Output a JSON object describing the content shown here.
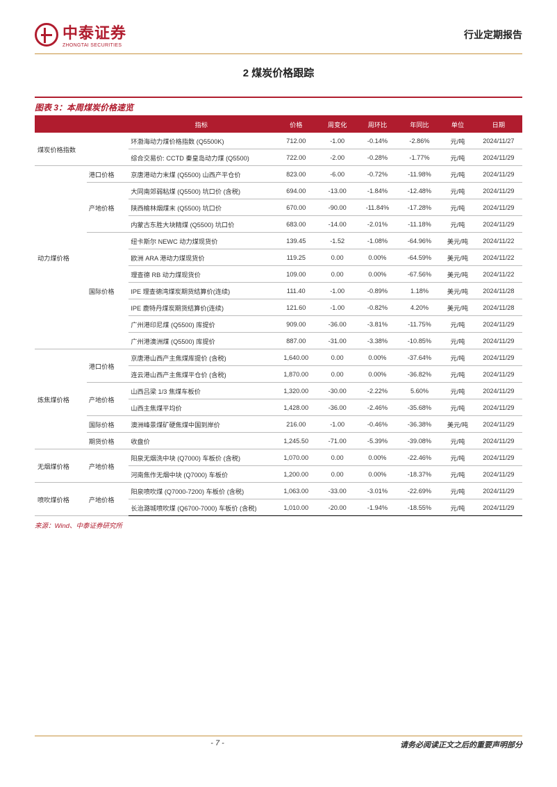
{
  "header": {
    "logo_cn": "中泰证券",
    "logo_en": "ZHONGTAI SECURITIES",
    "report_type": "行业定期报告"
  },
  "section_title": "2 煤炭价格跟踪",
  "figure_title": "图表 3：本周煤炭价格速览",
  "table": {
    "columns": [
      "",
      "",
      "指标",
      "价格",
      "周变化",
      "周环比",
      "年同比",
      "单位",
      "日期"
    ],
    "col_widths": [
      "68px",
      "55px",
      "190px",
      "58px",
      "50px",
      "55px",
      "55px",
      "45px",
      "62px"
    ],
    "header_bg": "#b01c2e",
    "header_color": "#ffffff",
    "border_color": "#bbbbbb",
    "accent_color": "#b01c2e",
    "rows": [
      {
        "cat": "煤炭价格指数",
        "cat_rs": 2,
        "sub": "",
        "sub_rs": 2,
        "ind": "环渤海动力煤价格指数 (Q5500K)",
        "price": "712.00",
        "wchg": "-1.00",
        "wpct": "-0.14%",
        "ypct": "-2.86%",
        "unit": "元/吨",
        "date": "2024/11/27",
        "cat_sep": false
      },
      {
        "ind": "综合交易价: CCTD 秦皇岛动力煤 (Q5500)",
        "price": "722.00",
        "wchg": "-2.00",
        "wpct": "-0.28%",
        "ypct": "-1.77%",
        "unit": "元/吨",
        "date": "2024/11/29"
      },
      {
        "cat": "动力煤价格",
        "cat_rs": 11,
        "sub": "港口价格",
        "sub_rs": 1,
        "ind": "京唐港动力末煤 (Q5500) 山西产平仓价",
        "price": "823.00",
        "wchg": "-6.00",
        "wpct": "-0.72%",
        "ypct": "-11.98%",
        "unit": "元/吨",
        "date": "2024/11/29",
        "cat_sep": true
      },
      {
        "sub": "产地价格",
        "sub_rs": 3,
        "ind": "大同南郊弱粘煤 (Q5500) 坑口价 (含税)",
        "price": "694.00",
        "wchg": "-13.00",
        "wpct": "-1.84%",
        "ypct": "-12.48%",
        "unit": "元/吨",
        "date": "2024/11/29",
        "sub_sep": true
      },
      {
        "ind": "陕西榆林烟煤末 (Q5500) 坑口价",
        "price": "670.00",
        "wchg": "-90.00",
        "wpct": "-11.84%",
        "ypct": "-17.28%",
        "unit": "元/吨",
        "date": "2024/11/29"
      },
      {
        "ind": "内蒙古东胜大块精煤 (Q5500) 坑口价",
        "price": "683.00",
        "wchg": "-14.00",
        "wpct": "-2.01%",
        "ypct": "-11.18%",
        "unit": "元/吨",
        "date": "2024/11/29"
      },
      {
        "sub": "国际价格",
        "sub_rs": 7,
        "ind": "纽卡斯尔 NEWC 动力煤现货价",
        "price": "139.45",
        "wchg": "-1.52",
        "wpct": "-1.08%",
        "ypct": "-64.96%",
        "unit": "美元/吨",
        "date": "2024/11/22",
        "sub_sep": true
      },
      {
        "ind": "欧洲 ARA 港动力煤现货价",
        "price": "119.25",
        "wchg": "0.00",
        "wpct": "0.00%",
        "ypct": "-64.59%",
        "unit": "美元/吨",
        "date": "2024/11/22"
      },
      {
        "ind": "理查德 RB 动力煤现货价",
        "price": "109.00",
        "wchg": "0.00",
        "wpct": "0.00%",
        "ypct": "-67.56%",
        "unit": "美元/吨",
        "date": "2024/11/22"
      },
      {
        "ind": "IPE 理查德湾煤炭期货结算价(连续)",
        "price": "111.40",
        "wchg": "-1.00",
        "wpct": "-0.89%",
        "ypct": "1.18%",
        "unit": "美元/吨",
        "date": "2024/11/28"
      },
      {
        "ind": "IPE 鹿特丹煤炭期货结算价(连续)",
        "price": "121.60",
        "wchg": "-1.00",
        "wpct": "-0.82%",
        "ypct": "4.20%",
        "unit": "美元/吨",
        "date": "2024/11/28"
      },
      {
        "ind": "广州港印尼煤 (Q5500) 库提价",
        "price": "909.00",
        "wchg": "-36.00",
        "wpct": "-3.81%",
        "ypct": "-11.75%",
        "unit": "元/吨",
        "date": "2024/11/29"
      },
      {
        "ind": "广州港澳洲煤 (Q5500) 库提价",
        "price": "887.00",
        "wchg": "-31.00",
        "wpct": "-3.38%",
        "ypct": "-10.85%",
        "unit": "元/吨",
        "date": "2024/11/29"
      },
      {
        "cat": "炼焦煤价格",
        "cat_rs": 6,
        "sub": "港口价格",
        "sub_rs": 2,
        "ind": "京唐港山西产主焦煤库提价 (含税)",
        "price": "1,640.00",
        "wchg": "0.00",
        "wpct": "0.00%",
        "ypct": "-37.64%",
        "unit": "元/吨",
        "date": "2024/11/29",
        "cat_sep": true
      },
      {
        "ind": "连云港山西产主焦煤平仓价 (含税)",
        "price": "1,870.00",
        "wchg": "0.00",
        "wpct": "0.00%",
        "ypct": "-36.82%",
        "unit": "元/吨",
        "date": "2024/11/29"
      },
      {
        "sub": "产地价格",
        "sub_rs": 2,
        "ind": "山西吕梁 1/3 焦煤车板价",
        "price": "1,320.00",
        "wchg": "-30.00",
        "wpct": "-2.22%",
        "ypct": "5.60%",
        "unit": "元/吨",
        "date": "2024/11/29",
        "sub_sep": true
      },
      {
        "ind": "山西主焦煤平均价",
        "price": "1,428.00",
        "wchg": "-36.00",
        "wpct": "-2.46%",
        "ypct": "-35.68%",
        "unit": "元/吨",
        "date": "2024/11/29"
      },
      {
        "sub": "国际价格",
        "sub_rs": 1,
        "ind": "澳洲峰景煤矿硬焦煤中国到岸价",
        "price": "216.00",
        "wchg": "-1.00",
        "wpct": "-0.46%",
        "ypct": "-36.38%",
        "unit": "美元/吨",
        "date": "2024/11/29",
        "sub_sep": true
      },
      {
        "sub": "期货价格",
        "sub_rs": 1,
        "ind": "收盘价",
        "price": "1,245.50",
        "wchg": "-71.00",
        "wpct": "-5.39%",
        "ypct": "-39.08%",
        "unit": "元/吨",
        "date": "2024/11/29",
        "sub_sep": true
      },
      {
        "cat": "无烟煤价格",
        "cat_rs": 2,
        "sub": "产地价格",
        "sub_rs": 2,
        "ind": "阳泉无烟洗中块 (Q7000) 车板价 (含税)",
        "price": "1,070.00",
        "wchg": "0.00",
        "wpct": "0.00%",
        "ypct": "-22.46%",
        "unit": "元/吨",
        "date": "2024/11/29",
        "cat_sep": true
      },
      {
        "ind": "河南焦作无烟中块 (Q7000) 车板价",
        "price": "1,200.00",
        "wchg": "0.00",
        "wpct": "0.00%",
        "ypct": "-18.37%",
        "unit": "元/吨",
        "date": "2024/11/29"
      },
      {
        "cat": "喷吹煤价格",
        "cat_rs": 2,
        "sub": "产地价格",
        "sub_rs": 2,
        "ind": "阳泉喷吹煤 (Q7000-7200) 车板价 (含税)",
        "price": "1,063.00",
        "wchg": "-33.00",
        "wpct": "-3.01%",
        "ypct": "-22.69%",
        "unit": "元/吨",
        "date": "2024/11/29",
        "cat_sep": true
      },
      {
        "ind": "长治潞城喷吹煤 (Q6700-7000) 车板价 (含税)",
        "price": "1,010.00",
        "wchg": "-20.00",
        "wpct": "-1.94%",
        "ypct": "-18.55%",
        "unit": "元/吨",
        "date": "2024/11/29",
        "last": true
      }
    ]
  },
  "source": "来源：Wind、中泰证券研究所",
  "footer": {
    "page": "- 7 -",
    "note": "请务必阅读正文之后的重要声明部分"
  }
}
